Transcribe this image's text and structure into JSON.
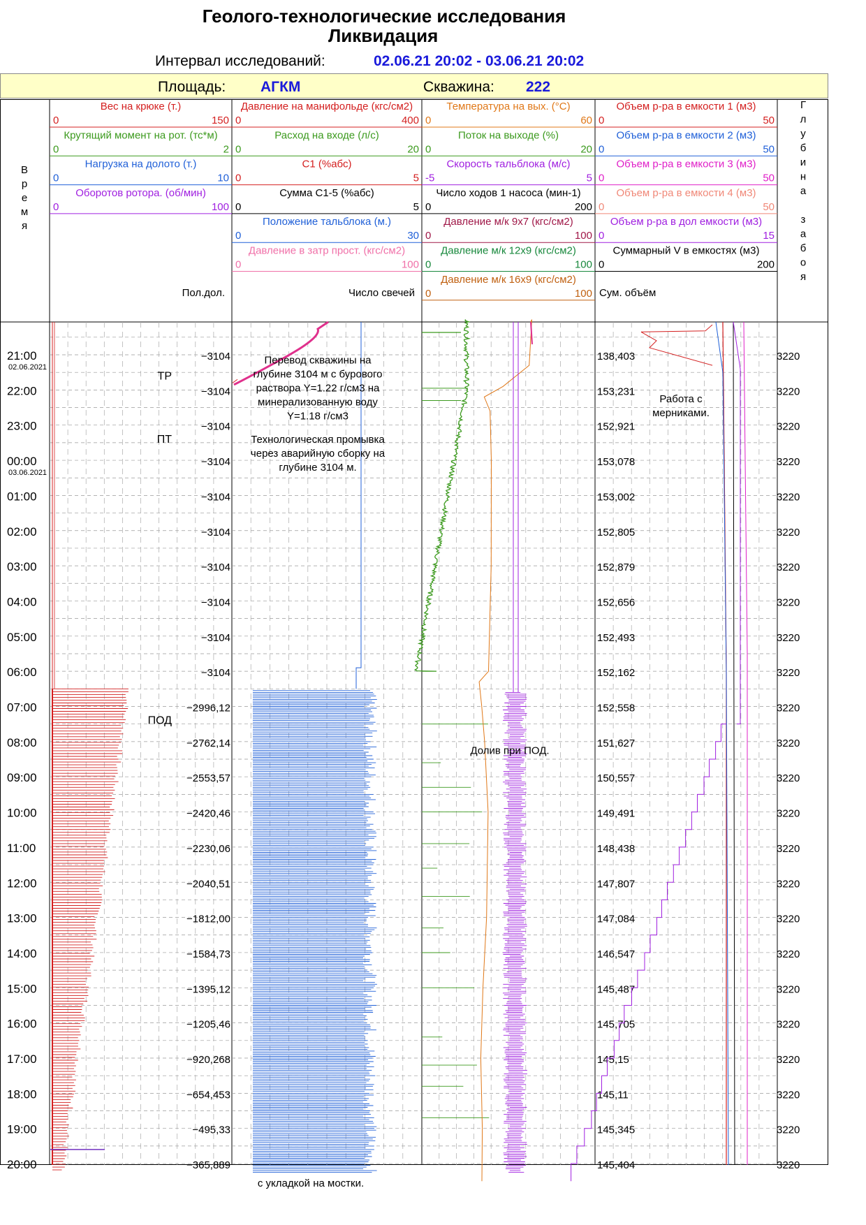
{
  "header": {
    "title": "Геолого-технологические исследования",
    "subtitle": "Ликвидация",
    "interval_label": "Интервал исследований:",
    "interval_value": "02.06.21 20:02 - 03.06.21 20:02",
    "area_label": "Площадь:",
    "area_value": "АГКМ",
    "well_label": "Скважина:",
    "well_value": "222"
  },
  "chart_data": {
    "type": "line",
    "time_header": "Время",
    "depth_header": "Глубина забоя",
    "time_labels": [
      "21:00",
      "22:00",
      "23:00",
      "00:00",
      "01:00",
      "02:00",
      "03:00",
      "04:00",
      "05:00",
      "06:00",
      "07:00",
      "08:00",
      "09:00",
      "10:00",
      "11:00",
      "12:00",
      "13:00",
      "14:00",
      "15:00",
      "16:00",
      "17:00",
      "18:00",
      "19:00",
      "20:00"
    ],
    "date_labels": [
      {
        "text": "02.06.2021",
        "at": "21:00"
      },
      {
        "text": "03.06.2021",
        "at": "00:00"
      }
    ],
    "bit_positions": [
      "−3104",
      "−3104",
      "−3104",
      "−3104",
      "−3104",
      "−3104",
      "−3104",
      "−3104",
      "−3104",
      "−3104",
      "−2996,12",
      "−2762,14",
      "−2553,57",
      "−2420,46",
      "−2230,06",
      "−2040,51",
      "−1812,00",
      "−1584,73",
      "−1395,12",
      "−1205,46",
      "−920,268",
      "−654,453",
      "−495,33",
      "−365,889"
    ],
    "sum_volumes": [
      "138,403",
      "153,231",
      "152,921",
      "153,078",
      "153,002",
      "152,805",
      "152,879",
      "152,656",
      "152,493",
      "152,162",
      "152,558",
      "151,627",
      "150,557",
      "149,491",
      "148,438",
      "147,807",
      "147,084",
      "146,547",
      "145,487",
      "145,705",
      "145,15",
      "145,11",
      "145,345",
      "145,404"
    ],
    "bottom_depths": [
      "3220",
      "3220",
      "3220",
      "3220",
      "3220",
      "3220",
      "3220",
      "3220",
      "3220",
      "3220",
      "3220",
      "3220",
      "3220",
      "3220",
      "3220",
      "3220",
      "3220",
      "3220",
      "3220",
      "3220",
      "3220",
      "3220",
      "3220",
      "3220"
    ],
    "operations": [
      {
        "text": "ТР",
        "at_hour": 0.8
      },
      {
        "text": "ПТ",
        "at_hour": 2.6
      },
      {
        "text": "ПОД",
        "at_hour": 10.6
      }
    ],
    "tracks": [
      {
        "params": [
          {
            "name": "Вес на крюке  (т.)",
            "min": "0",
            "max": "150",
            "color": "#d42020"
          },
          {
            "name": "Крутящий момент на рот. (тс*м)",
            "min": "0",
            "max": "2",
            "color": "#3c9a1e"
          },
          {
            "name": "Нагрузка на долото (т.)",
            "min": "0",
            "max": "10",
            "color": "#2060d8"
          },
          {
            "name": "Оборотов ротора. (об/мин)",
            "min": "0",
            "max": "100",
            "color": "#a020e0"
          }
        ],
        "footer": "Пол.дол."
      },
      {
        "params": [
          {
            "name": "Давление на манифольде (кгс/см2)",
            "min": "0",
            "max": "400",
            "color": "#d42020"
          },
          {
            "name": "Расход на входе (л/с)",
            "min": "0",
            "max": "20",
            "color": "#3c9a1e"
          },
          {
            "name": "С1 (%абс)",
            "min": "0",
            "max": "5",
            "color": "#d42020"
          },
          {
            "name": "Сумма С1-5 (%абс)",
            "min": "0",
            "max": "5",
            "color": "#000000"
          },
          {
            "name": "Положение тальблока (м.)",
            "min": "0",
            "max": "30",
            "color": "#2060d8"
          },
          {
            "name": "Давление в затр прост. (кгс/см2)",
            "min": "0",
            "max": "100",
            "color": "#f070a8"
          }
        ],
        "footer": "Число свечей"
      },
      {
        "params": [
          {
            "name": "Температура  на вых. (°С)",
            "min": "0",
            "max": "60",
            "color": "#e07818"
          },
          {
            "name": "Поток на выходе (%)",
            "min": "0",
            "max": "20",
            "color": "#3c9a1e"
          },
          {
            "name": "Скорость тальблока (м/с)",
            "min": "-5",
            "max": "5",
            "color": "#a020e0"
          },
          {
            "name": "Число ходов 1 насоса (мин-1)",
            "min": "0",
            "max": "200",
            "color": "#000000"
          },
          {
            "name": "Давление м/к 9х7 (кгс/см2)",
            "min": "0",
            "max": "100",
            "color": "#a01848"
          },
          {
            "name": "Давление м/к 12х9 (кгс/см2)",
            "min": "0",
            "max": "100",
            "color": "#18883c"
          },
          {
            "name": "Давление м/к 16х9 (кгс/см2)",
            "min": "0",
            "max": "100",
            "color": "#c06010"
          }
        ],
        "footer": ""
      },
      {
        "params": [
          {
            "name": "Объем р-ра в емкости 1 (м3)",
            "min": "0",
            "max": "50",
            "color": "#d42020"
          },
          {
            "name": "Объем р-ра в емкости 2 (м3)",
            "min": "0",
            "max": "50",
            "color": "#2060d8"
          },
          {
            "name": "Объем р-ра в емкости 3 (м3)",
            "min": "0",
            "max": "50",
            "color": "#e020c8"
          },
          {
            "name": "Объем р-ра в емкости 4 (м3)",
            "min": "0",
            "max": "50",
            "color": "#f08878"
          },
          {
            "name": "Объем р-ра в дол емкости  (м3)",
            "min": "0",
            "max": "15",
            "color": "#a020e0"
          },
          {
            "name": "Суммарный V в емкостях (м3)",
            "min": "0",
            "max": "200",
            "color": "#000000"
          }
        ],
        "footer": "Сум. объём"
      }
    ],
    "annotations": [
      {
        "text": [
          "Перевод скважины  на",
          "глубине 3104 м с бурового",
          "раствора Y=1.22 г/см3 на",
          "минерализованную воду",
          "Y=1.18 г/см3"
        ],
        "track": 1,
        "at_hour": 0.25
      },
      {
        "text": [
          "Технологическая промывка",
          "через аварийную сборку на",
          "глубине 3104 м."
        ],
        "track": 1,
        "at_hour": 2.5
      },
      {
        "text": [
          "Долив при ПОД."
        ],
        "track": 2,
        "at_hour": 11.35
      },
      {
        "text": [
          "Работа с",
          "мерниками."
        ],
        "track": 3,
        "at_hour": 1.35
      },
      {
        "text": [
          "с укладкой на мостки."
        ],
        "track": 1,
        "at_hour": 23.65
      }
    ]
  }
}
